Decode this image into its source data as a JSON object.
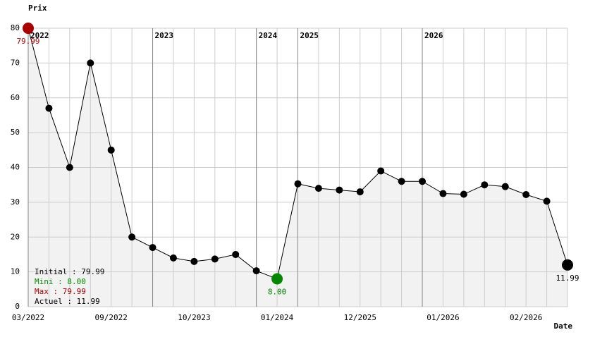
{
  "chart_data": {
    "type": "line",
    "y_label": "Prix",
    "x_label": "Date",
    "categories": [
      "03/2022",
      null,
      null,
      null,
      "09/2022",
      null,
      null,
      null,
      "10/2023",
      null,
      null,
      null,
      "01/2024",
      null,
      null,
      null,
      "12/2025",
      null,
      null,
      null,
      "01/2026",
      null,
      null,
      null,
      "02/2026",
      null,
      null
    ],
    "series": [
      {
        "name": "Prix",
        "color": "#000000",
        "values": [
          79.99,
          57,
          40,
          70,
          45,
          20,
          17,
          14,
          13,
          13.7,
          15,
          10.3,
          8.0,
          35.3,
          34,
          33.5,
          33,
          39,
          36,
          36,
          32.5,
          32.3,
          35,
          34.5,
          32.2,
          30.3,
          11.99
        ],
        "value_labels": [
          "79.99",
          null,
          null,
          null,
          null,
          null,
          null,
          null,
          null,
          null,
          null,
          null,
          "8.00",
          null,
          null,
          null,
          null,
          null,
          null,
          null,
          null,
          null,
          null,
          null,
          null,
          null,
          "11.99"
        ]
      }
    ],
    "max_color": "#aa0000",
    "min_color": "#008800",
    "fill_color": "#f2f2f2",
    "year_markers": [
      {
        "at": 0,
        "label": "2022"
      },
      {
        "at": 6,
        "label": "2023"
      },
      {
        "at": 11,
        "label": "2024"
      },
      {
        "at": 13,
        "label": "2025"
      },
      {
        "at": 19,
        "label": "2026"
      }
    ],
    "ylim": [
      0,
      80
    ],
    "yticks": [
      0,
      10,
      20,
      30,
      40,
      50,
      60,
      70,
      80
    ],
    "grid": true,
    "stats": [
      {
        "text": "Initial : 79.99",
        "color": "#000000"
      },
      {
        "text": "Mini : 8.00",
        "color": "#008800"
      },
      {
        "text": "Max : 79.99",
        "color": "#aa0000"
      },
      {
        "text": "Actuel : 11.99",
        "color": "#000000"
      }
    ]
  }
}
